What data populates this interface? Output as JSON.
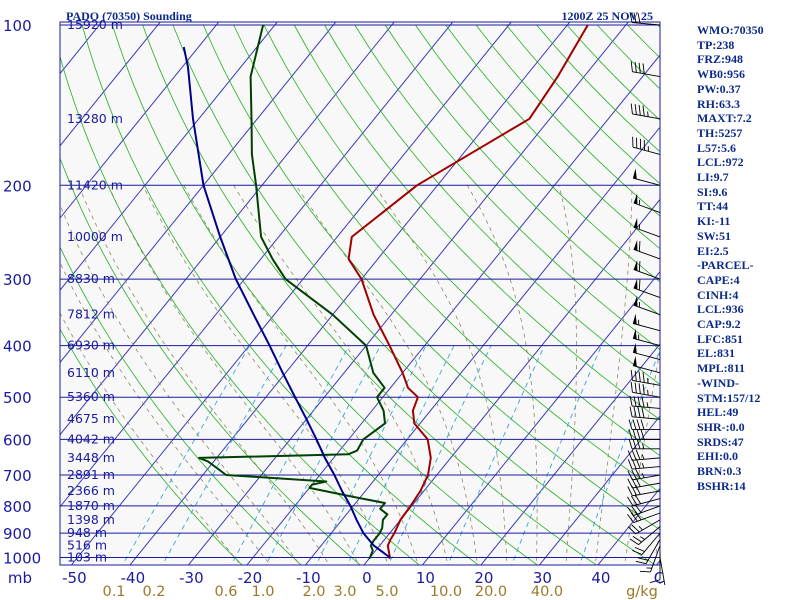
{
  "header": {
    "station_title": "PADO (70350) Sounding",
    "valid_time": "1200Z 25 NOV 25"
  },
  "indices": [
    "WMO:70350",
    "TP:238",
    "FRZ:948",
    "WB0:956",
    "PW:0.37",
    "RH:63.3",
    "MAXT:7.2",
    "TH:5257",
    "L57:5.6",
    "LCL:972",
    "LI:9.7",
    "SI:9.6",
    "TT:44",
    "KI:-11",
    "SW:51",
    "EI:2.5",
    "-PARCEL-",
    "CAPE:4",
    "CINH:4",
    "LCL:936",
    "CAP:9.2",
    "LFC:851",
    "EL:831",
    "MPL:811",
    "-WIND-",
    "STM:157/12",
    "HEL:49",
    "SHR-:0.0",
    "SRDS:47",
    "EHI:0.0",
    "BRN:0.3",
    "BSHR:14"
  ],
  "chart_data": {
    "type": "skew-t log-p sounding",
    "pressure_axis": {
      "unit_label": "mb",
      "levels": [
        100,
        200,
        300,
        400,
        500,
        600,
        700,
        800,
        900,
        1000
      ],
      "range": [
        100,
        1050
      ],
      "scale": "log"
    },
    "temperature_axis": {
      "ticks": [
        -50,
        -40,
        -30,
        -20,
        -10,
        0,
        10,
        20,
        30,
        40
      ],
      "tick_labels": [
        "-50",
        "-40",
        "-30",
        "-20",
        "-10",
        "0",
        "10",
        "20",
        "30",
        "40"
      ],
      "end_label": "C"
    },
    "mixing_ratio_axis": {
      "unit_label": "g/kg",
      "labels": [
        "0.1",
        "0.2",
        "0.6",
        "1.0",
        "2.0",
        "3.0",
        "5.0",
        "10.0",
        "20.0",
        "40.0"
      ],
      "values": [
        0.1,
        0.2,
        0.6,
        1.0,
        2.0,
        3.0,
        5.0,
        10.0,
        20.0,
        40.0
      ]
    },
    "height_labels": [
      {
        "text": "15920 m",
        "p": 100
      },
      {
        "text": "13280 m",
        "p": 150
      },
      {
        "text": "11420 m",
        "p": 200
      },
      {
        "text": "10000 m",
        "p": 250
      },
      {
        "text": "8830 m",
        "p": 300
      },
      {
        "text": "7812 m",
        "p": 350
      },
      {
        "text": "6930 m",
        "p": 400
      },
      {
        "text": "6110 m",
        "p": 450
      },
      {
        "text": "5360 m",
        "p": 500
      },
      {
        "text": "4675 m",
        "p": 550
      },
      {
        "text": "4042 m",
        "p": 600
      },
      {
        "text": "3448 m",
        "p": 650
      },
      {
        "text": "2891 m",
        "p": 700
      },
      {
        "text": "2366 m",
        "p": 750
      },
      {
        "text": "1870 m",
        "p": 800
      },
      {
        "text": "1398 m",
        "p": 850
      },
      {
        "text": "948 m",
        "p": 900
      },
      {
        "text": "516 m",
        "p": 950
      },
      {
        "text": "103 m",
        "p": 1000
      }
    ],
    "series": [
      {
        "kind": "temperature",
        "color": "#a00000",
        "points": [
          [
            1005,
            3.4
          ],
          [
            1000,
            3.4
          ],
          [
            950,
            1.4
          ],
          [
            925,
            1.0
          ],
          [
            900,
            0.8
          ],
          [
            850,
            0.0
          ],
          [
            800,
            -0.2
          ],
          [
            750,
            -0.6
          ],
          [
            700,
            -1.5
          ],
          [
            650,
            -3.4
          ],
          [
            600,
            -6.5
          ],
          [
            560,
            -11.0
          ],
          [
            530,
            -13.0
          ],
          [
            500,
            -14.0
          ],
          [
            480,
            -17.0
          ],
          [
            450,
            -20.0
          ],
          [
            400,
            -26.0
          ],
          [
            350,
            -33.0
          ],
          [
            300,
            -40.0
          ],
          [
            275,
            -45.0
          ],
          [
            250,
            -47.5
          ],
          [
            200,
            -43.5
          ],
          [
            150,
            -33.5
          ],
          [
            125,
            -34.5
          ],
          [
            100,
            -36.5
          ]
        ]
      },
      {
        "kind": "dewpoint",
        "color": "#004000",
        "points": [
          [
            1005,
            0.0
          ],
          [
            1000,
            0.0
          ],
          [
            970,
            -0.5
          ],
          [
            950,
            -1.5
          ],
          [
            930,
            -1.7
          ],
          [
            900,
            -1.7
          ],
          [
            880,
            -2.0
          ],
          [
            850,
            -3.0
          ],
          [
            830,
            -3.0
          ],
          [
            810,
            -5.0
          ],
          [
            790,
            -5.0
          ],
          [
            770,
            -11.0
          ],
          [
            740,
            -20.0
          ],
          [
            730,
            -20.0
          ],
          [
            720,
            -18.0
          ],
          [
            700,
            -36.0
          ],
          [
            660,
            -41.0
          ],
          [
            650,
            -43.0
          ],
          [
            640,
            -18.0
          ],
          [
            630,
            -17.0
          ],
          [
            600,
            -17.5
          ],
          [
            560,
            -16.0
          ],
          [
            530,
            -18.0
          ],
          [
            500,
            -21.0
          ],
          [
            480,
            -21.0
          ],
          [
            450,
            -25.0
          ],
          [
            400,
            -30.0
          ],
          [
            350,
            -40.0
          ],
          [
            300,
            -53.0
          ],
          [
            275,
            -58.0
          ],
          [
            250,
            -63.0
          ],
          [
            230,
            -66.0
          ],
          [
            200,
            -71.0
          ],
          [
            175,
            -76.0
          ],
          [
            150,
            -81.0
          ],
          [
            125,
            -87.0
          ],
          [
            100,
            -92.0
          ]
        ]
      },
      {
        "kind": "parcel",
        "color": "#00008b",
        "points": [
          [
            1000,
            3.4
          ],
          [
            950,
            -1.0
          ],
          [
            900,
            -4.5
          ],
          [
            850,
            -7.5
          ],
          [
            800,
            -10.5
          ],
          [
            750,
            -14.0
          ],
          [
            700,
            -17.5
          ],
          [
            650,
            -21.5
          ],
          [
            600,
            -25.5
          ],
          [
            550,
            -30.0
          ],
          [
            500,
            -35.0
          ],
          [
            450,
            -40.5
          ],
          [
            400,
            -46.5
          ],
          [
            350,
            -53.5
          ],
          [
            300,
            -61.5
          ],
          [
            250,
            -70.0
          ],
          [
            200,
            -80.0
          ],
          [
            150,
            -91.0
          ],
          [
            120,
            -99.0
          ],
          [
            110,
            -102.5
          ]
        ]
      }
    ],
    "wind_barbs": [
      {
        "p": 1000,
        "dir": 170,
        "spd": 5
      },
      {
        "p": 975,
        "dir": 180,
        "spd": 10
      },
      {
        "p": 950,
        "dir": 200,
        "spd": 15
      },
      {
        "p": 925,
        "dir": 210,
        "spd": 20
      },
      {
        "p": 900,
        "dir": 220,
        "spd": 20
      },
      {
        "p": 875,
        "dir": 230,
        "spd": 25
      },
      {
        "p": 850,
        "dir": 240,
        "spd": 25
      },
      {
        "p": 825,
        "dir": 250,
        "spd": 30
      },
      {
        "p": 800,
        "dir": 250,
        "spd": 30
      },
      {
        "p": 775,
        "dir": 255,
        "spd": 30
      },
      {
        "p": 750,
        "dir": 260,
        "spd": 30
      },
      {
        "p": 725,
        "dir": 260,
        "spd": 30
      },
      {
        "p": 700,
        "dir": 260,
        "spd": 35
      },
      {
        "p": 675,
        "dir": 265,
        "spd": 35
      },
      {
        "p": 650,
        "dir": 265,
        "spd": 35
      },
      {
        "p": 625,
        "dir": 270,
        "spd": 35
      },
      {
        "p": 600,
        "dir": 270,
        "spd": 40
      },
      {
        "p": 575,
        "dir": 270,
        "spd": 40
      },
      {
        "p": 550,
        "dir": 275,
        "spd": 40
      },
      {
        "p": 525,
        "dir": 275,
        "spd": 45
      },
      {
        "p": 500,
        "dir": 280,
        "spd": 45
      },
      {
        "p": 475,
        "dir": 280,
        "spd": 45
      },
      {
        "p": 450,
        "dir": 285,
        "spd": 50
      },
      {
        "p": 425,
        "dir": 285,
        "spd": 50
      },
      {
        "p": 400,
        "dir": 285,
        "spd": 55
      },
      {
        "p": 375,
        "dir": 285,
        "spd": 55
      },
      {
        "p": 350,
        "dir": 290,
        "spd": 55
      },
      {
        "p": 325,
        "dir": 290,
        "spd": 60
      },
      {
        "p": 300,
        "dir": 290,
        "spd": 60
      },
      {
        "p": 275,
        "dir": 290,
        "spd": 60
      },
      {
        "p": 250,
        "dir": 290,
        "spd": 55
      },
      {
        "p": 225,
        "dir": 290,
        "spd": 55
      },
      {
        "p": 200,
        "dir": 285,
        "spd": 50
      },
      {
        "p": 175,
        "dir": 285,
        "spd": 45
      },
      {
        "p": 150,
        "dir": 280,
        "spd": 45
      },
      {
        "p": 125,
        "dir": 280,
        "spd": 40
      },
      {
        "p": 100,
        "dir": 275,
        "spd": 30
      }
    ]
  }
}
